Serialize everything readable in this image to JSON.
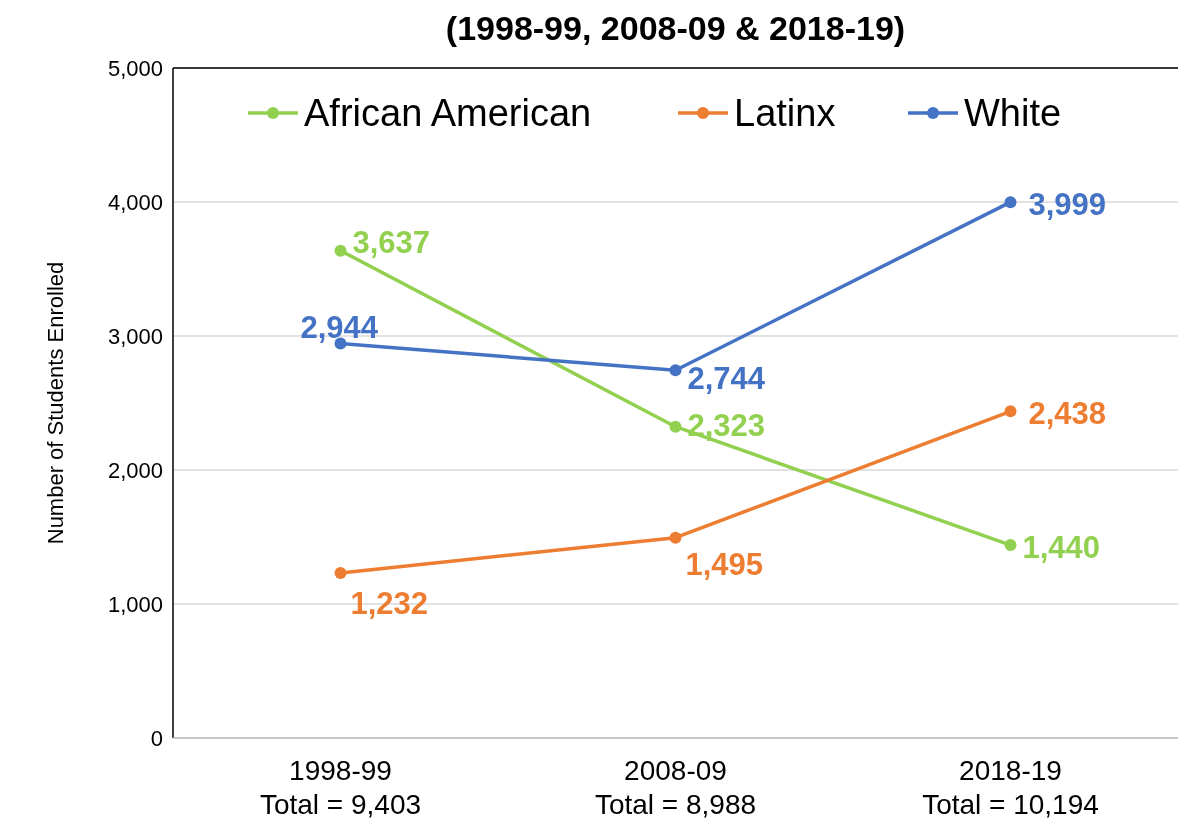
{
  "chart_data": {
    "type": "line",
    "title": "(1998-99, 2008-09 & 2018-19)",
    "ylabel": "Number of Students Enrolled",
    "categories": [
      "1998-99\nTotal = 9,403",
      "2008-09\nTotal = 8,988",
      "2018-19\nTotal = 10,194"
    ],
    "series": [
      {
        "name": "African American",
        "color": "#92d050",
        "values": [
          3637,
          2323,
          1440
        ],
        "value_labels": [
          "3,637",
          "2,323",
          "1,440"
        ]
      },
      {
        "name": "Latinx",
        "color": "#ed7d31",
        "values": [
          1232,
          1495,
          2438
        ],
        "value_labels": [
          "1,232",
          "1,495",
          "2,438"
        ]
      },
      {
        "name": "White",
        "color": "#4472c4",
        "values": [
          2944,
          2744,
          3999
        ],
        "value_labels": [
          "2,944",
          "2,744",
          "3,999"
        ]
      }
    ],
    "ylim": [
      0,
      5000
    ],
    "yticks": [
      {
        "value": 0,
        "label": "0"
      },
      {
        "value": 1000,
        "label": "1,000"
      },
      {
        "value": 2000,
        "label": "2,000"
      },
      {
        "value": 3000,
        "label": "3,000"
      },
      {
        "value": 4000,
        "label": "4,000"
      },
      {
        "value": 5000,
        "label": "5,000"
      }
    ],
    "grid": "y",
    "legend": "top",
    "marker": "circle",
    "line_style": "solid"
  }
}
